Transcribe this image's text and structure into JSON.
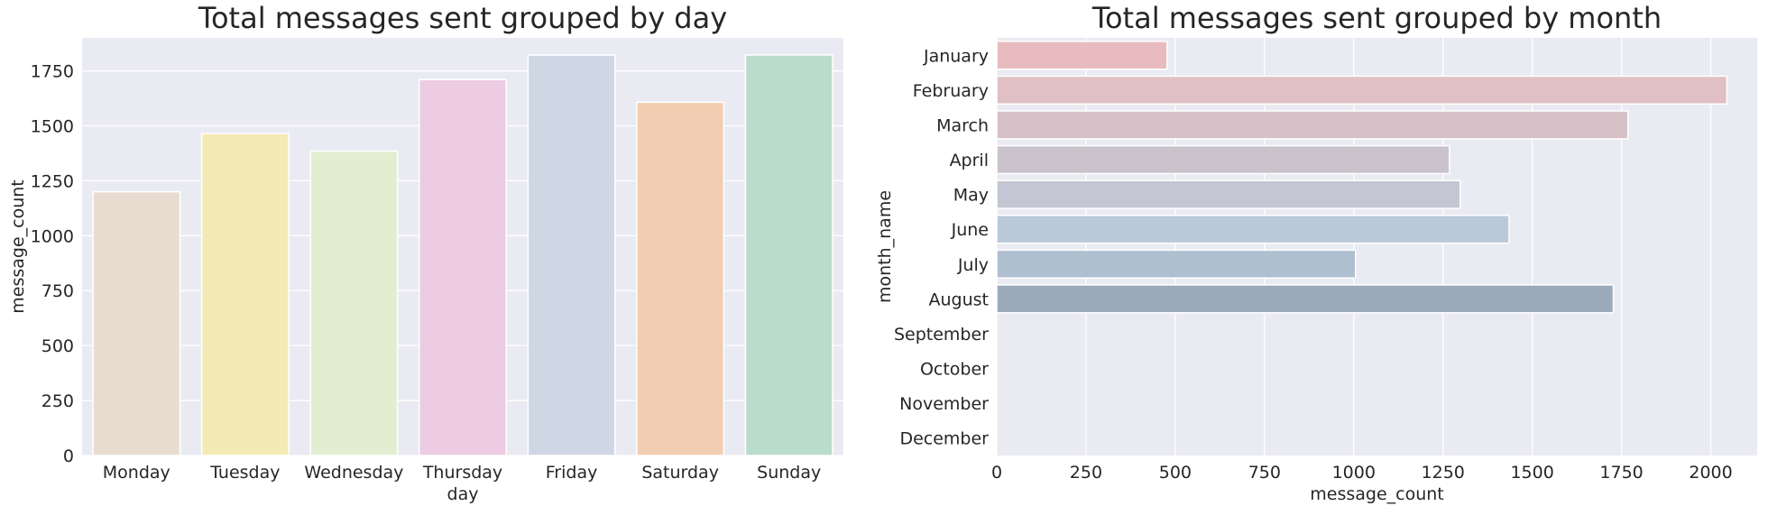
{
  "chart_data": [
    {
      "type": "bar",
      "orientation": "vertical",
      "title": "Total messages sent grouped by day",
      "xlabel": "day",
      "ylabel": "message_count",
      "categories": [
        "Monday",
        "Tuesday",
        "Wednesday",
        "Thursday",
        "Friday",
        "Saturday",
        "Sunday"
      ],
      "values": [
        1200,
        1465,
        1385,
        1710,
        1822,
        1607,
        1822
      ],
      "colors": [
        "#e8ddd0",
        "#f4eab6",
        "#e1efd0",
        "#edcbe3",
        "#cfd6e4",
        "#f2cdb1",
        "#badccb"
      ],
      "ylim": [
        0,
        1900
      ],
      "yticks": [
        0,
        250,
        500,
        750,
        1000,
        1250,
        1500,
        1750
      ],
      "grid": true,
      "background": "#eaeaf2"
    },
    {
      "type": "bar",
      "orientation": "horizontal",
      "title": "Total messages sent grouped by month",
      "xlabel": "message_count",
      "ylabel": "month_name",
      "categories": [
        "January",
        "February",
        "March",
        "April",
        "May",
        "June",
        "July",
        "August",
        "September",
        "October",
        "November",
        "December"
      ],
      "values": [
        477,
        2045,
        1768,
        1268,
        1298,
        1435,
        1005,
        1727,
        0,
        0,
        0,
        0
      ],
      "colors": [
        "#e8bcbe",
        "#e0bfc5",
        "#d6c1c8",
        "#cbc3cc",
        "#c5c6d3",
        "#bac8d8",
        "#aebfd0",
        "#9baab8",
        "#9aa9b6",
        "#9aa9b6",
        "#9aa9b6",
        "#9aa9b6"
      ],
      "xlim": [
        0,
        2130
      ],
      "xticks": [
        0,
        250,
        500,
        750,
        1000,
        1250,
        1500,
        1750,
        2000
      ],
      "grid": true,
      "background": "#eaeaf2"
    }
  ]
}
